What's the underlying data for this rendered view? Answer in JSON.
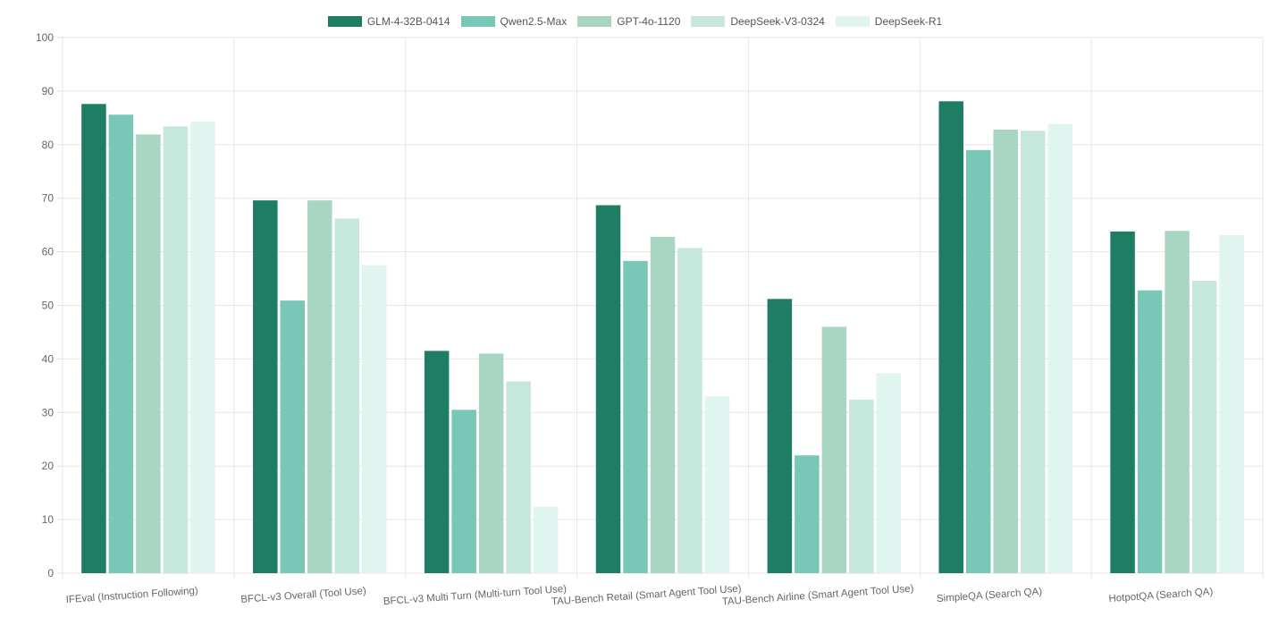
{
  "chart_data": {
    "type": "bar",
    "categories": [
      "IFEval (Instruction Following)",
      "BFCL-v3 Overall (Tool Use)",
      "BFCL-v3 Multi Turn (Multi-turn Tool Use)",
      "TAU-Bench Retail (Smart Agent Tool Use)",
      "TAU-Bench Airline (Smart Agent Tool Use)",
      "SimpleQA (Search QA)",
      "HotpotQA (Search QA)"
    ],
    "series": [
      {
        "name": "GLM-4-32B-0414",
        "color": "#1e7d63",
        "values": [
          87.6,
          69.6,
          41.5,
          68.7,
          51.2,
          88.1,
          63.8
        ]
      },
      {
        "name": "Qwen2.5-Max",
        "color": "#79c7b7",
        "values": [
          85.6,
          50.9,
          30.5,
          58.3,
          22.0,
          79.0,
          52.8
        ]
      },
      {
        "name": "GPT-4o-1120",
        "color": "#a9d5c3",
        "values": [
          81.9,
          69.6,
          41.0,
          62.8,
          46.0,
          82.8,
          63.9
        ]
      },
      {
        "name": "DeepSeek-V3-0324",
        "color": "#c6e7dc",
        "values": [
          83.4,
          66.2,
          35.8,
          60.7,
          32.4,
          82.6,
          54.6
        ]
      },
      {
        "name": "DeepSeek-R1",
        "color": "#e0f5ef",
        "values": [
          84.3,
          57.5,
          12.4,
          33.0,
          37.3,
          83.9,
          63.1
        ]
      }
    ],
    "ylim": [
      0,
      100
    ],
    "yticks": [
      0,
      10,
      20,
      30,
      40,
      50,
      60,
      70,
      80,
      90,
      100
    ],
    "grid": true,
    "legend_position": "top"
  }
}
